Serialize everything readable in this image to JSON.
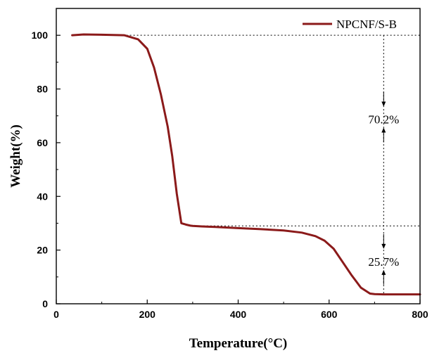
{
  "chart_data": {
    "type": "line",
    "title": "",
    "xlabel": "Temperature(°C)",
    "ylabel": "Weight(%)",
    "xlim": [
      0,
      800
    ],
    "ylim": [
      0,
      110
    ],
    "xticks": [
      0,
      200,
      400,
      600,
      800
    ],
    "yticks": [
      0,
      20,
      40,
      60,
      80,
      100
    ],
    "grid": false,
    "legend_position": "top-right",
    "series": [
      {
        "name": "NPCNF/S-B",
        "color": "#8b1a1a",
        "x": [
          35,
          60,
          100,
          150,
          180,
          200,
          215,
          230,
          245,
          255,
          265,
          275,
          285,
          295,
          300,
          320,
          350,
          400,
          450,
          500,
          540,
          570,
          590,
          610,
          630,
          650,
          670,
          690,
          700,
          720,
          750,
          800
        ],
        "y": [
          100,
          100.3,
          100.2,
          100,
          98.5,
          95,
          88,
          78,
          66,
          55,
          41,
          30,
          29.5,
          29.1,
          29,
          28.8,
          28.6,
          28.2,
          27.8,
          27.3,
          26.5,
          25.2,
          23.5,
          20.5,
          15.5,
          10.5,
          6,
          3.8,
          3.6,
          3.5,
          3.5,
          3.5
        ]
      }
    ],
    "reference_lines": {
      "y_values": [
        100,
        29
      ],
      "x_value": 720
    },
    "annotations": [
      {
        "text": "70.2%",
        "x": 720,
        "y": 68.5,
        "from_y": 100,
        "to_y": 29
      },
      {
        "text": "25.7%",
        "x": 720,
        "y": 15.5,
        "from_y": 29,
        "to_y": 3.3
      }
    ]
  }
}
